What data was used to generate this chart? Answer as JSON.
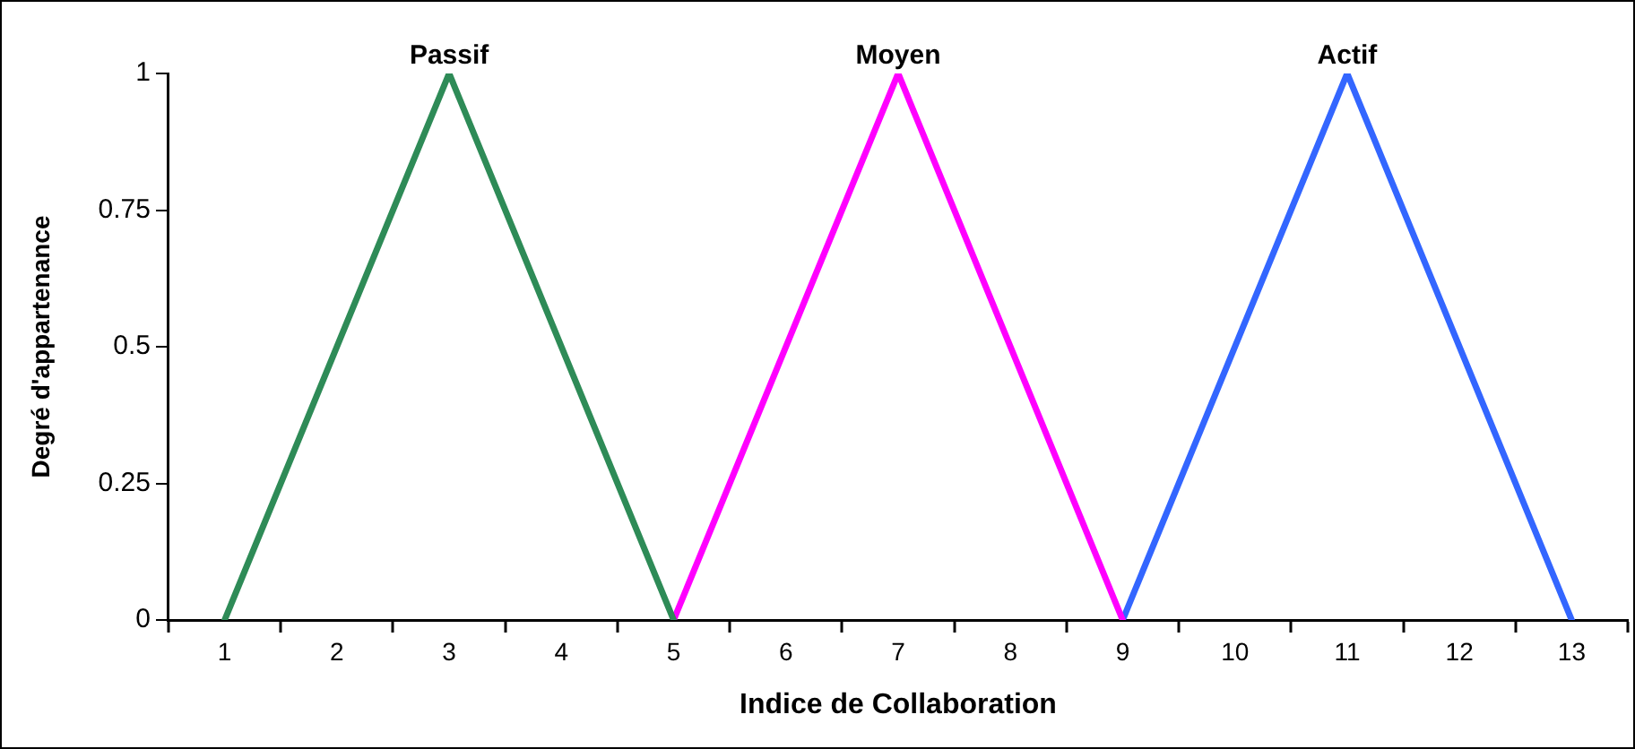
{
  "chart_data": {
    "type": "line",
    "xlabel": "Indice de Collaboration",
    "ylabel": "Degré d'appartenance",
    "series": [
      {
        "name": "Passif",
        "color": "#2e8b57",
        "x": [
          1,
          3,
          5
        ],
        "values": [
          0,
          1,
          0
        ]
      },
      {
        "name": "Moyen",
        "color": "#ff00ff",
        "x": [
          5,
          7,
          9
        ],
        "values": [
          0,
          1,
          0
        ]
      },
      {
        "name": "Actif",
        "color": "#3366ff",
        "x": [
          9,
          11,
          13
        ],
        "values": [
          0,
          1,
          0
        ]
      }
    ],
    "xlim": [
      0.5,
      13.5
    ],
    "xticks": [
      {
        "value": 0.5,
        "label": null
      },
      1,
      {
        "value": 1.5,
        "label": null
      },
      2,
      {
        "value": 2.5,
        "label": null
      },
      3,
      {
        "value": 3.5,
        "label": null
      },
      4,
      {
        "value": 4.5,
        "label": null
      },
      5,
      {
        "value": 5.5,
        "label": null
      },
      6,
      {
        "value": 6.5,
        "label": null
      },
      7,
      {
        "value": 7.5,
        "label": null
      },
      8,
      {
        "value": 8.5,
        "label": null
      },
      9,
      {
        "value": 9.5,
        "label": null
      },
      10,
      {
        "value": 10.5,
        "label": null
      },
      11,
      {
        "value": 11.5,
        "label": null
      },
      12,
      {
        "value": 12.5,
        "label": null
      },
      13,
      {
        "value": 13.5,
        "label": null
      }
    ],
    "ylim": [
      0,
      1
    ],
    "yticks": [
      0,
      {
        "value": 0.25,
        "label": "0.25"
      },
      {
        "value": 0.5,
        "label": "0.5"
      },
      {
        "value": 0.75,
        "label": "0.75"
      },
      1
    ],
    "grid": false,
    "legend": false,
    "marker": "none",
    "line_style": "solid"
  }
}
